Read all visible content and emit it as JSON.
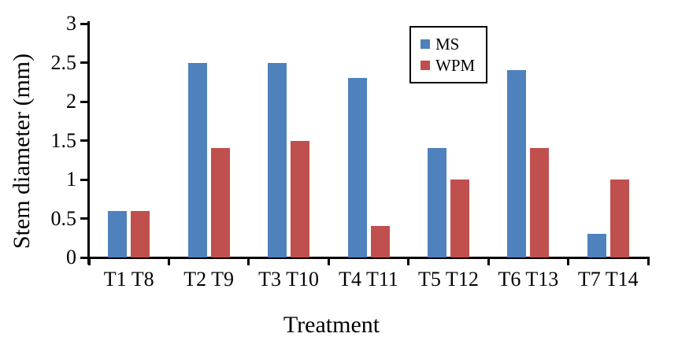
{
  "chart_data": {
    "type": "bar",
    "title": "",
    "xlabel": "Treatment",
    "ylabel": "Stem diameter (mm)",
    "categories": [
      "T1 T8",
      "T2 T9",
      "T3 T10",
      "T4 T11",
      "T5 T12",
      "T6 T13",
      "T7 T14"
    ],
    "series": [
      {
        "name": "MS",
        "color": "#4f81bd",
        "values": [
          0.6,
          2.5,
          2.5,
          2.3,
          1.4,
          2.4,
          0.3
        ]
      },
      {
        "name": "WPM",
        "color": "#c0504d",
        "values": [
          0.6,
          1.4,
          1.5,
          0.4,
          1.0,
          1.4,
          1.0
        ]
      }
    ],
    "ylim": [
      0,
      3
    ],
    "ytick_labels": [
      "0",
      "0.5",
      "1",
      "1.5",
      "2",
      "2.5",
      "3"
    ],
    "grid": false,
    "legend_position": "inside-top-center",
    "axis_color": "#000000",
    "text_color": "#000000",
    "background": "#ffffff"
  }
}
